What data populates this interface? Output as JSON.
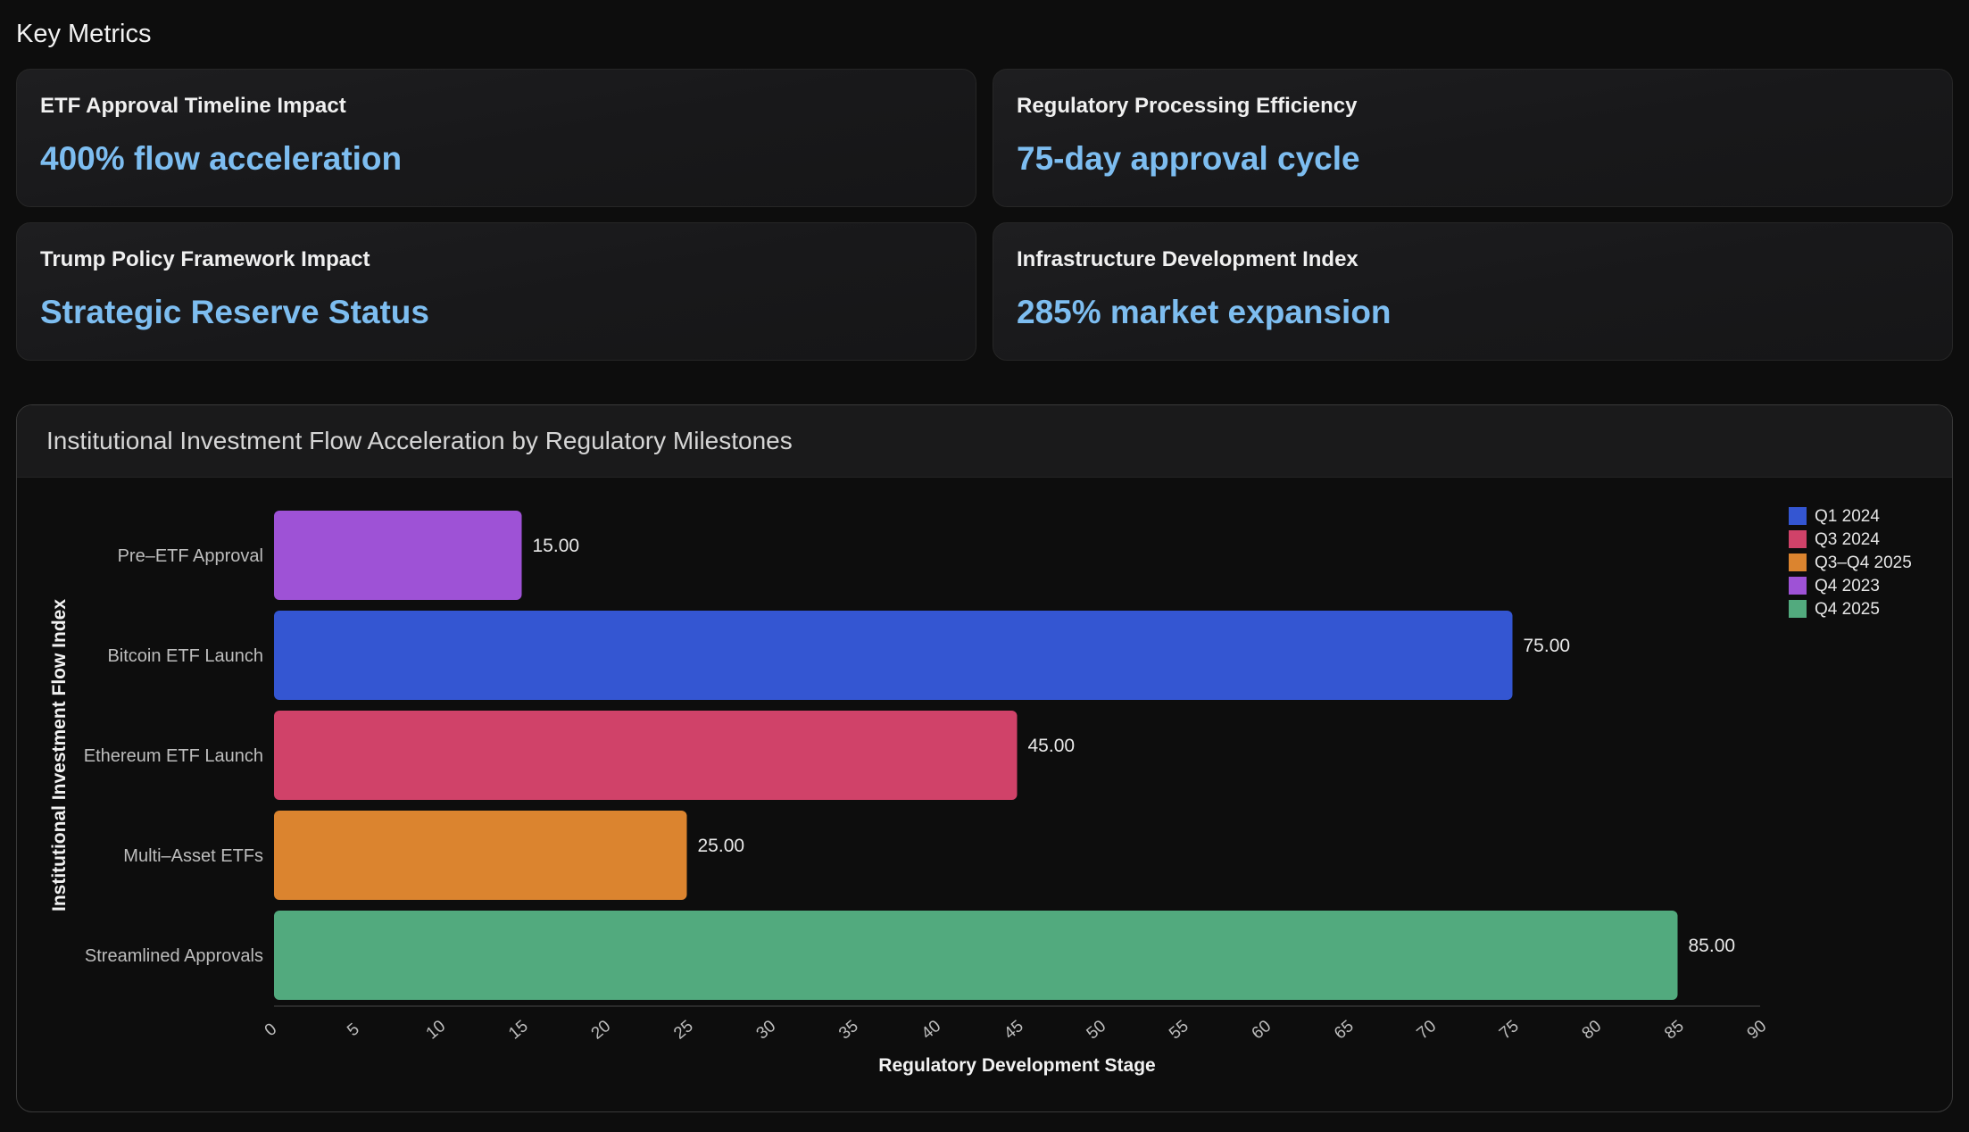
{
  "section_title": "Key Metrics",
  "metrics": [
    {
      "label": "ETF Approval Timeline Impact",
      "value": "400% flow acceleration"
    },
    {
      "label": "Regulatory Processing Efficiency",
      "value": "75-day approval cycle"
    },
    {
      "label": "Trump Policy Framework Impact",
      "value": "Strategic Reserve Status"
    },
    {
      "label": "Infrastructure Development Index",
      "value": "285% market expansion"
    }
  ],
  "chart_data": {
    "type": "bar",
    "orientation": "horizontal",
    "title": "Institutional Investment Flow Acceleration by Regulatory Milestones",
    "xlabel": "Regulatory Development Stage",
    "ylabel": "Institutional Investment Flow Index",
    "categories": [
      "Pre–ETF Approval",
      "Bitcoin ETF Launch",
      "Ethereum ETF Launch",
      "Multi–Asset ETFs",
      "Streamlined Approvals"
    ],
    "values": [
      15,
      75,
      45,
      25,
      85
    ],
    "value_labels": [
      "15.00",
      "75.00",
      "45.00",
      "25.00",
      "85.00"
    ],
    "bar_groups": [
      "Q4 2023",
      "Q1 2024",
      "Q3 2024",
      "Q3–Q4 2025",
      "Q4 2025"
    ],
    "xlim": [
      0,
      90
    ],
    "xticks": [
      "0",
      "5",
      "10",
      "15",
      "20",
      "25",
      "30",
      "35",
      "40",
      "45",
      "50",
      "55",
      "60",
      "65",
      "70",
      "75",
      "80",
      "85",
      "90"
    ],
    "grid": false,
    "legend_position": "top-right",
    "legend": [
      {
        "name": "Q1 2024",
        "color": "#3456d2"
      },
      {
        "name": "Q3 2024",
        "color": "#d04269"
      },
      {
        "name": "Q3–Q4 2025",
        "color": "#db842f"
      },
      {
        "name": "Q4 2023",
        "color": "#9e52d6"
      },
      {
        "name": "Q4 2025",
        "color": "#52aa7e"
      }
    ]
  }
}
